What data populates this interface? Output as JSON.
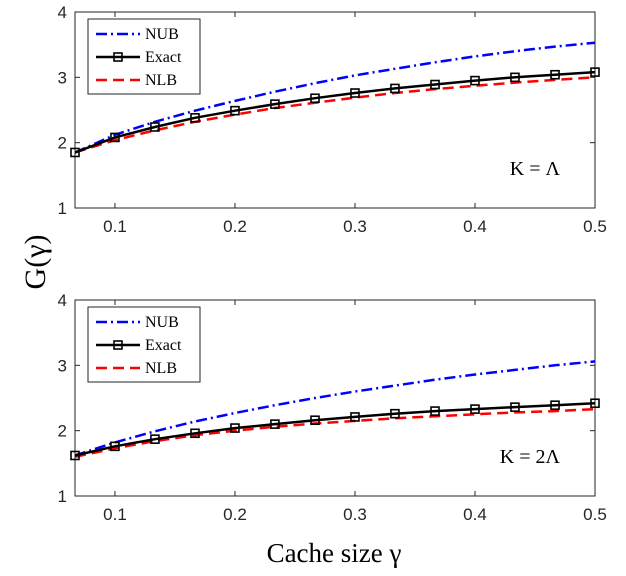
{
  "figure": {
    "ylabel": "G(γ)",
    "xlabel": "Cache size γ"
  },
  "chart_data": [
    {
      "type": "line",
      "annotation": "K = Λ",
      "xlim": [
        0.0667,
        0.5
      ],
      "ylim": [
        1,
        4
      ],
      "xticks": [
        "0.1",
        "0.2",
        "0.3",
        "0.4",
        "0.5"
      ],
      "yticks": [
        "1",
        "2",
        "3",
        "4"
      ],
      "legend_position": "top-left",
      "grid": false,
      "marker_x": [
        0.0667,
        0.1,
        0.1333,
        0.1667,
        0.2,
        0.2333,
        0.2667,
        0.3,
        0.3333,
        0.3667,
        0.4,
        0.4333,
        0.4667,
        0.5
      ],
      "series": [
        {
          "name": "NUB",
          "color": "#0000ff",
          "style": "dash-dot",
          "marker": "none",
          "x": [
            0.0667,
            0.1,
            0.1333,
            0.1667,
            0.2,
            0.2333,
            0.2667,
            0.3,
            0.3333,
            0.3667,
            0.4,
            0.4333,
            0.4667,
            0.5
          ],
          "values": [
            1.85,
            2.12,
            2.32,
            2.49,
            2.64,
            2.78,
            2.91,
            3.03,
            3.13,
            3.23,
            3.32,
            3.4,
            3.47,
            3.53
          ]
        },
        {
          "name": "Exact",
          "color": "#000000",
          "style": "solid",
          "marker": "square",
          "x": [
            0.0667,
            0.1,
            0.1333,
            0.1667,
            0.2,
            0.2333,
            0.2667,
            0.3,
            0.3333,
            0.3667,
            0.4,
            0.4333,
            0.4667,
            0.5
          ],
          "values": [
            1.85,
            2.08,
            2.24,
            2.38,
            2.49,
            2.59,
            2.68,
            2.76,
            2.83,
            2.89,
            2.95,
            3.0,
            3.04,
            3.08
          ]
        },
        {
          "name": "NLB",
          "color": "#ff0000",
          "style": "dashed",
          "marker": "none",
          "x": [
            0.0667,
            0.1,
            0.1333,
            0.1667,
            0.2,
            0.2333,
            0.2667,
            0.3,
            0.3333,
            0.3667,
            0.4,
            0.4333,
            0.4667,
            0.5
          ],
          "values": [
            1.85,
            2.04,
            2.19,
            2.32,
            2.43,
            2.53,
            2.61,
            2.69,
            2.76,
            2.82,
            2.87,
            2.92,
            2.96,
            3.0
          ]
        }
      ]
    },
    {
      "type": "line",
      "annotation": "K = 2Λ",
      "xlim": [
        0.0667,
        0.5
      ],
      "ylim": [
        1,
        4
      ],
      "xticks": [
        "0.1",
        "0.2",
        "0.3",
        "0.4",
        "0.5"
      ],
      "yticks": [
        "1",
        "2",
        "3",
        "4"
      ],
      "legend_position": "top-left",
      "grid": false,
      "marker_x": [
        0.0667,
        0.1,
        0.1333,
        0.1667,
        0.2,
        0.2333,
        0.2667,
        0.3,
        0.3333,
        0.3667,
        0.4,
        0.4333,
        0.4667,
        0.5
      ],
      "series": [
        {
          "name": "NUB",
          "color": "#0000ff",
          "style": "dash-dot",
          "marker": "none",
          "x": [
            0.0667,
            0.1,
            0.1333,
            0.1667,
            0.2,
            0.2333,
            0.2667,
            0.3,
            0.3333,
            0.3667,
            0.4,
            0.4333,
            0.4667,
            0.5
          ],
          "values": [
            1.62,
            1.82,
            1.99,
            2.14,
            2.27,
            2.39,
            2.5,
            2.6,
            2.69,
            2.78,
            2.86,
            2.93,
            3.0,
            3.06
          ]
        },
        {
          "name": "Exact",
          "color": "#000000",
          "style": "solid",
          "marker": "square",
          "x": [
            0.0667,
            0.1,
            0.1333,
            0.1667,
            0.2,
            0.2333,
            0.2667,
            0.3,
            0.3333,
            0.3667,
            0.4,
            0.4333,
            0.4667,
            0.5
          ],
          "values": [
            1.62,
            1.76,
            1.87,
            1.96,
            2.04,
            2.1,
            2.16,
            2.21,
            2.26,
            2.3,
            2.33,
            2.36,
            2.39,
            2.42
          ]
        },
        {
          "name": "NLB",
          "color": "#ff0000",
          "style": "dashed",
          "marker": "none",
          "x": [
            0.0667,
            0.1,
            0.1333,
            0.1667,
            0.2,
            0.2333,
            0.2667,
            0.3,
            0.3333,
            0.3667,
            0.4,
            0.4333,
            0.4667,
            0.5
          ],
          "values": [
            1.6,
            1.73,
            1.84,
            1.93,
            2.0,
            2.06,
            2.11,
            2.15,
            2.19,
            2.22,
            2.25,
            2.28,
            2.3,
            2.33
          ]
        }
      ]
    }
  ]
}
